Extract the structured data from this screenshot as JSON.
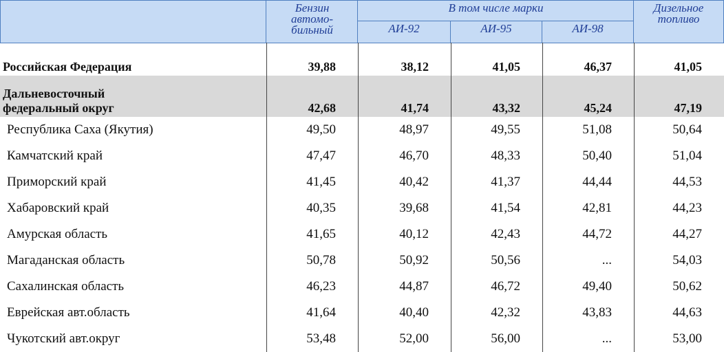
{
  "header": {
    "gasoline": [
      "Бензин",
      "автомо-",
      "бильный"
    ],
    "brands": "В том числе марки",
    "grades": [
      "АИ-92",
      "АИ-95",
      "АИ-98"
    ],
    "diesel": [
      "Дизельное",
      "топливо"
    ]
  },
  "rows": [
    {
      "name": [
        "Российская Федерация"
      ],
      "bold": true,
      "values": [
        "39,88",
        "38,12",
        "41,05",
        "46,37",
        "41,05"
      ]
    },
    {
      "name": [
        "Дальневосточный",
        "федеральный округ"
      ],
      "bold": true,
      "shaded": true,
      "values": [
        "42,68",
        "41,74",
        "43,32",
        "45,24",
        "47,19"
      ]
    },
    {
      "name": [
        "Республика Саха (Якутия)"
      ],
      "values": [
        "49,50",
        "48,97",
        "49,55",
        "51,08",
        "50,64"
      ]
    },
    {
      "name": [
        "Камчатский край"
      ],
      "values": [
        "47,47",
        "46,70",
        "48,33",
        "50,40",
        "51,04"
      ]
    },
    {
      "name": [
        "Приморский край"
      ],
      "values": [
        "41,45",
        "40,42",
        "41,37",
        "44,44",
        "44,53"
      ]
    },
    {
      "name": [
        "Хабаровский край"
      ],
      "values": [
        "40,35",
        "39,68",
        "41,54",
        "42,81",
        "44,23"
      ]
    },
    {
      "name": [
        "Амурская область"
      ],
      "values": [
        "41,65",
        "40,12",
        "42,43",
        "44,72",
        "44,27"
      ]
    },
    {
      "name": [
        "Магаданская область"
      ],
      "values": [
        "50,78",
        "50,92",
        "50,56",
        "...",
        "54,03"
      ]
    },
    {
      "name": [
        "Сахалинская область"
      ],
      "values": [
        "46,23",
        "44,87",
        "46,72",
        "49,40",
        "50,62"
      ]
    },
    {
      "name": [
        "Еврейская авт.область"
      ],
      "values": [
        "41,64",
        "40,40",
        "42,32",
        "43,83",
        "44,63"
      ]
    },
    {
      "name": [
        "Чукотский авт.округ"
      ],
      "values": [
        "53,48",
        "52,00",
        "56,00",
        "...",
        "53,00"
      ]
    }
  ]
}
